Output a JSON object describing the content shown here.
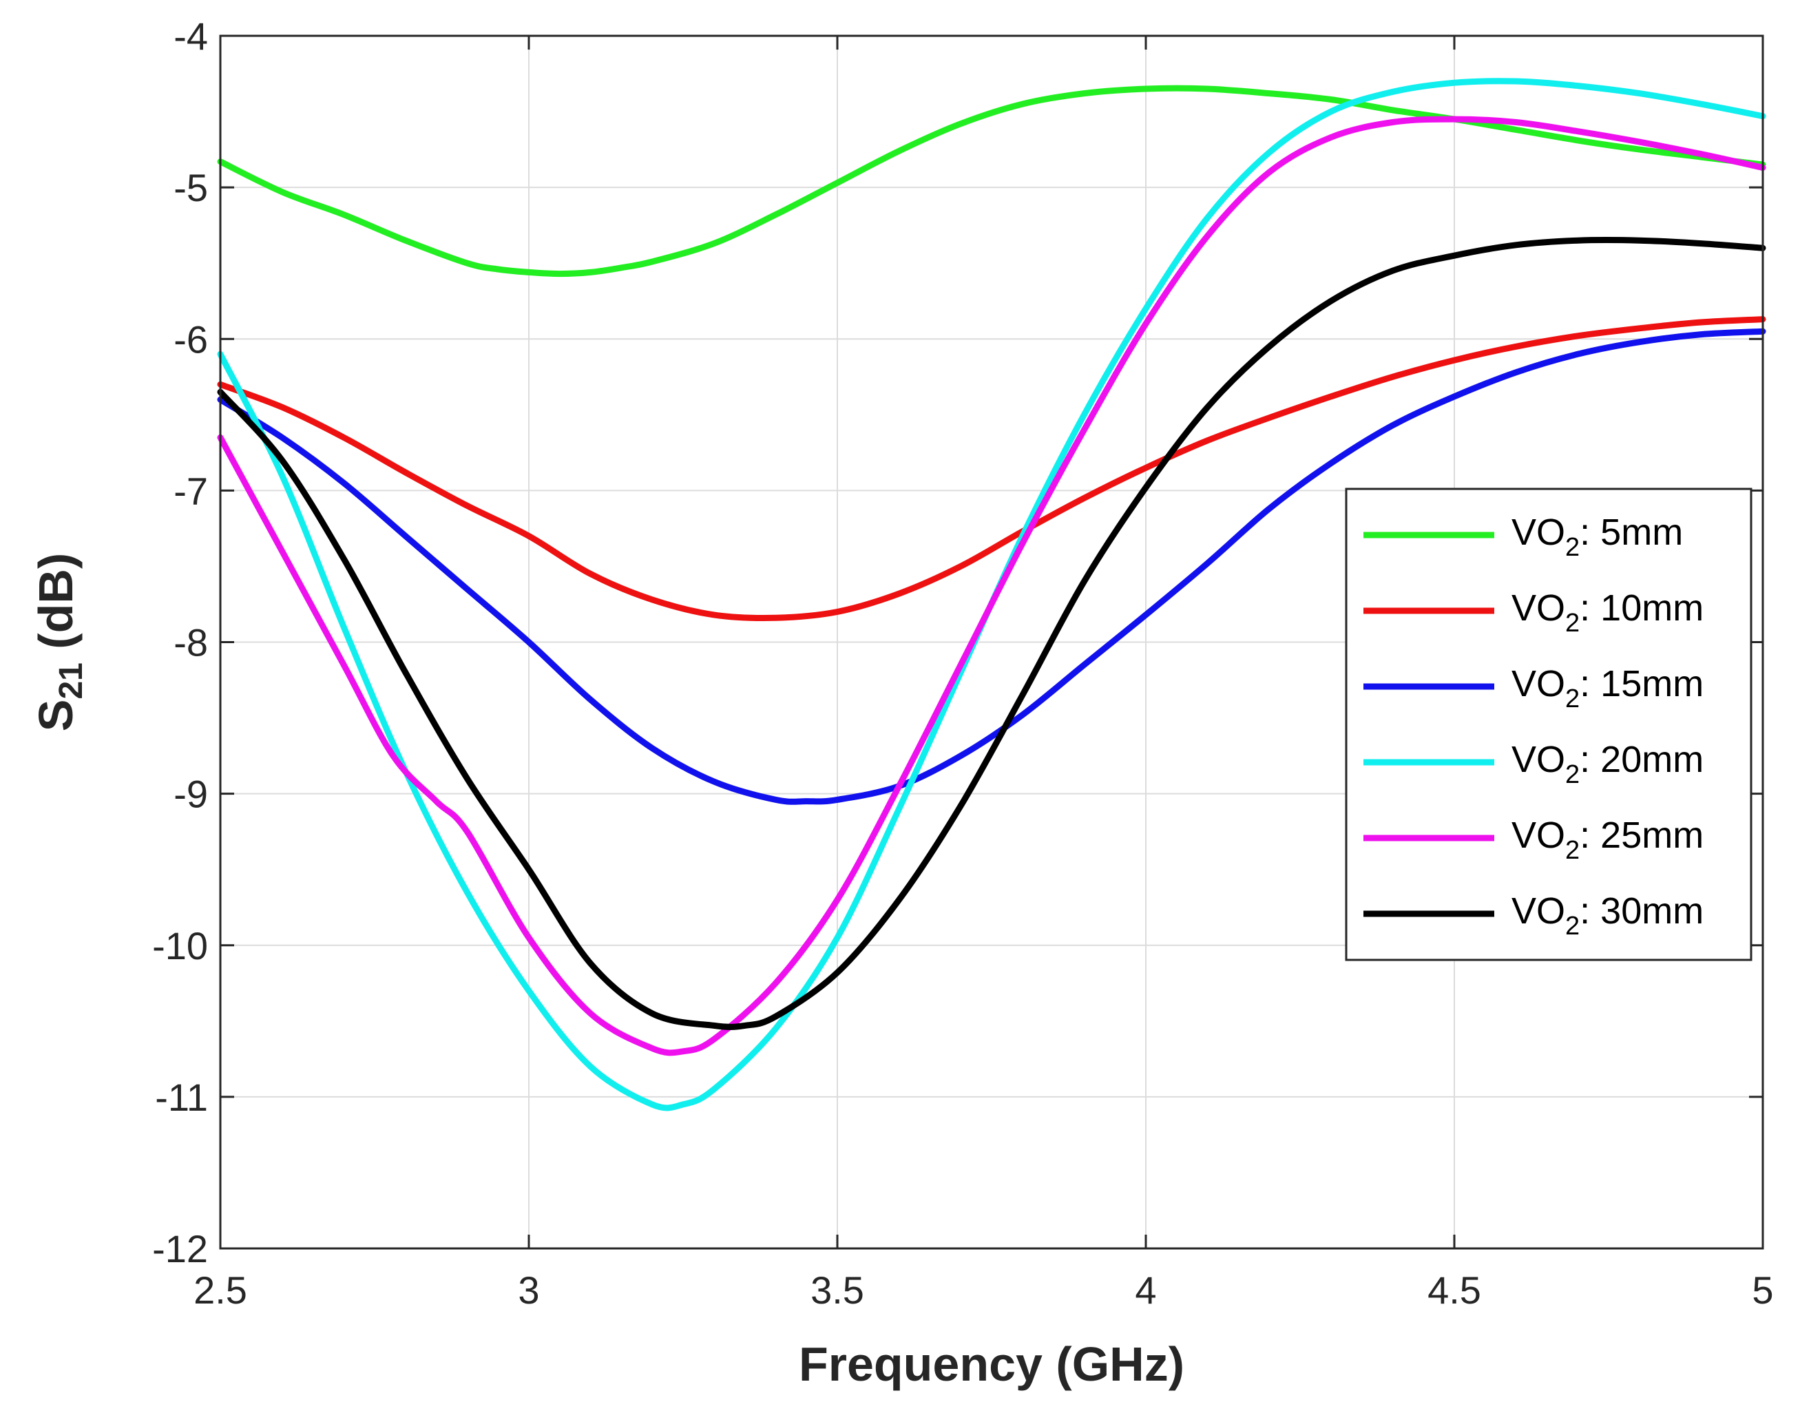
{
  "chart_data": {
    "type": "line",
    "title": "",
    "xlabel": "Frequency (GHz)",
    "ylabel": {
      "main": "S",
      "sub": "21",
      "unit": " (dB)"
    },
    "xlim": [
      2.5,
      5
    ],
    "ylim": [
      -12,
      -4
    ],
    "xticks": [
      2.5,
      3,
      3.5,
      4,
      4.5,
      5
    ],
    "xtick_labels": [
      "2.5",
      "3",
      "3.5",
      "4",
      "4.5",
      "5"
    ],
    "yticks": [
      -12,
      -11,
      -10,
      -9,
      -8,
      -7,
      -6,
      -5,
      -4
    ],
    "ytick_labels": [
      "-12",
      "-11",
      "-10",
      "-9",
      "-8",
      "-7",
      "-6",
      "-5",
      "-4"
    ],
    "grid": true,
    "legend_position": "right",
    "series": [
      {
        "name": "VO2: 5mm",
        "label_main": "VO",
        "label_sub": "2",
        "label_rest": ": 5mm",
        "color": "#22ee22",
        "x": [
          2.5,
          2.6,
          2.7,
          2.8,
          2.9,
          2.95,
          3.0,
          3.05,
          3.1,
          3.15,
          3.2,
          3.3,
          3.4,
          3.5,
          3.6,
          3.7,
          3.8,
          3.9,
          4.0,
          4.1,
          4.2,
          4.3,
          4.4,
          4.5,
          4.6,
          4.7,
          4.8,
          4.9,
          5.0
        ],
        "y": [
          -4.83,
          -5.03,
          -5.18,
          -5.35,
          -5.5,
          -5.54,
          -5.56,
          -5.57,
          -5.56,
          -5.53,
          -5.49,
          -5.37,
          -5.18,
          -4.97,
          -4.76,
          -4.58,
          -4.45,
          -4.38,
          -4.35,
          -4.35,
          -4.38,
          -4.42,
          -4.49,
          -4.55,
          -4.62,
          -4.69,
          -4.75,
          -4.8,
          -4.85
        ]
      },
      {
        "name": "VO2: 10mm",
        "label_main": "VO",
        "label_sub": "2",
        "label_rest": ": 10mm",
        "color": "#ee1111",
        "x": [
          2.5,
          2.6,
          2.7,
          2.8,
          2.9,
          3.0,
          3.1,
          3.2,
          3.3,
          3.4,
          3.5,
          3.6,
          3.7,
          3.8,
          3.9,
          4.0,
          4.1,
          4.2,
          4.3,
          4.4,
          4.5,
          4.6,
          4.7,
          4.8,
          4.9,
          5.0
        ],
        "y": [
          -6.3,
          -6.45,
          -6.65,
          -6.88,
          -7.1,
          -7.3,
          -7.55,
          -7.72,
          -7.82,
          -7.84,
          -7.8,
          -7.68,
          -7.5,
          -7.27,
          -7.05,
          -6.85,
          -6.67,
          -6.52,
          -6.38,
          -6.25,
          -6.14,
          -6.05,
          -5.98,
          -5.93,
          -5.89,
          -5.87
        ]
      },
      {
        "name": "VO2: 15mm",
        "label_main": "VO",
        "label_sub": "2",
        "label_rest": ": 15mm",
        "color": "#1111ee",
        "x": [
          2.5,
          2.6,
          2.7,
          2.8,
          2.9,
          3.0,
          3.1,
          3.2,
          3.3,
          3.4,
          3.45,
          3.5,
          3.6,
          3.7,
          3.8,
          3.9,
          4.0,
          4.1,
          4.2,
          4.3,
          4.4,
          4.5,
          4.6,
          4.7,
          4.8,
          4.9,
          5.0
        ],
        "y": [
          -6.4,
          -6.65,
          -6.95,
          -7.3,
          -7.65,
          -8.0,
          -8.38,
          -8.7,
          -8.92,
          -9.04,
          -9.05,
          -9.04,
          -8.95,
          -8.75,
          -8.48,
          -8.15,
          -7.82,
          -7.48,
          -7.12,
          -6.82,
          -6.57,
          -6.38,
          -6.22,
          -6.1,
          -6.02,
          -5.97,
          -5.95
        ]
      },
      {
        "name": "VO2: 20mm",
        "label_main": "VO",
        "label_sub": "2",
        "label_rest": ": 20mm",
        "color": "#11eeee",
        "x": [
          2.5,
          2.6,
          2.7,
          2.8,
          2.9,
          3.0,
          3.1,
          3.2,
          3.25,
          3.3,
          3.4,
          3.5,
          3.6,
          3.7,
          3.8,
          3.9,
          4.0,
          4.1,
          4.2,
          4.3,
          4.4,
          4.5,
          4.6,
          4.7,
          4.8,
          4.9,
          5.0
        ],
        "y": [
          -6.1,
          -6.9,
          -7.9,
          -8.85,
          -9.65,
          -10.3,
          -10.8,
          -11.05,
          -11.05,
          -10.95,
          -10.55,
          -9.95,
          -9.1,
          -8.2,
          -7.3,
          -6.5,
          -5.8,
          -5.2,
          -4.77,
          -4.5,
          -4.37,
          -4.31,
          -4.3,
          -4.33,
          -4.38,
          -4.45,
          -4.53
        ]
      },
      {
        "name": "VO2: 25mm",
        "label_main": "VO",
        "label_sub": "2",
        "label_rest": ": 25mm",
        "color": "#ee11ee",
        "x": [
          2.5,
          2.6,
          2.7,
          2.78,
          2.85,
          2.9,
          3.0,
          3.1,
          3.2,
          3.25,
          3.3,
          3.4,
          3.5,
          3.6,
          3.7,
          3.8,
          3.9,
          4.0,
          4.1,
          4.2,
          4.3,
          4.4,
          4.5,
          4.6,
          4.7,
          4.8,
          4.9,
          5.0
        ],
        "y": [
          -6.65,
          -7.4,
          -8.15,
          -8.75,
          -9.05,
          -9.25,
          -9.95,
          -10.45,
          -10.68,
          -10.7,
          -10.62,
          -10.25,
          -9.7,
          -8.95,
          -8.15,
          -7.35,
          -6.6,
          -5.9,
          -5.32,
          -4.9,
          -4.67,
          -4.57,
          -4.55,
          -4.57,
          -4.63,
          -4.7,
          -4.78,
          -4.87
        ]
      },
      {
        "name": "VO2: 30mm",
        "label_main": "VO",
        "label_sub": "2",
        "label_rest": ": 30mm",
        "color": "#000000",
        "x": [
          2.5,
          2.6,
          2.7,
          2.8,
          2.9,
          3.0,
          3.1,
          3.2,
          3.3,
          3.35,
          3.4,
          3.5,
          3.6,
          3.7,
          3.8,
          3.9,
          4.0,
          4.1,
          4.2,
          4.3,
          4.4,
          4.5,
          4.6,
          4.7,
          4.8,
          4.9,
          5.0
        ],
        "y": [
          -6.35,
          -6.8,
          -7.45,
          -8.2,
          -8.9,
          -9.5,
          -10.12,
          -10.45,
          -10.53,
          -10.53,
          -10.47,
          -10.18,
          -9.7,
          -9.08,
          -8.35,
          -7.6,
          -6.98,
          -6.45,
          -6.05,
          -5.75,
          -5.55,
          -5.45,
          -5.38,
          -5.35,
          -5.35,
          -5.37,
          -5.4
        ]
      }
    ]
  }
}
